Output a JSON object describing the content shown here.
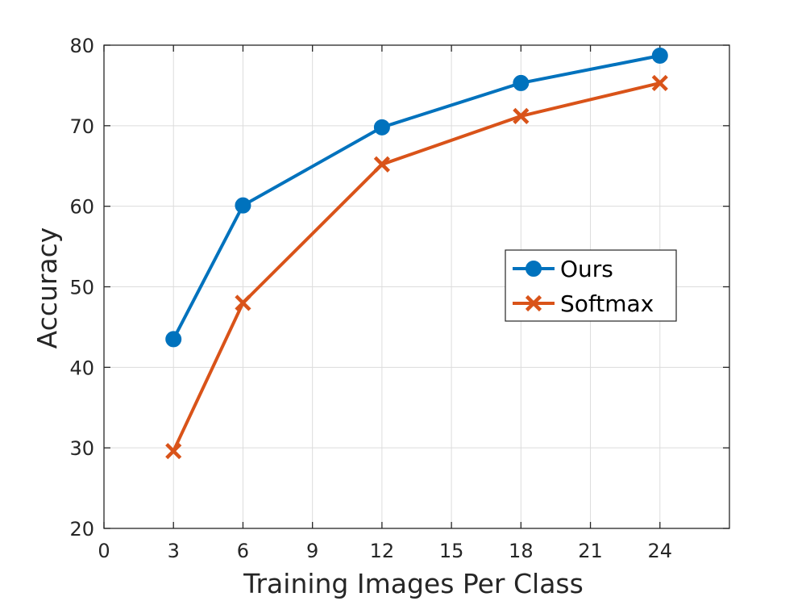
{
  "chart_data": {
    "type": "line",
    "xlabel": "Training Images Per Class",
    "ylabel": "Accuracy",
    "xlim": [
      0,
      27
    ],
    "ylim": [
      20,
      80
    ],
    "xticks": [
      0,
      3,
      6,
      9,
      12,
      15,
      18,
      21,
      24
    ],
    "yticks": [
      20,
      30,
      40,
      50,
      60,
      70,
      80
    ],
    "grid": true,
    "legend_position": "right",
    "series": [
      {
        "name": "Ours",
        "color": "#0072BD",
        "marker": "circle",
        "x": [
          3,
          6,
          12,
          18,
          24
        ],
        "y": [
          43.5,
          60.1,
          69.8,
          75.3,
          78.7
        ]
      },
      {
        "name": "Softmax",
        "color": "#D95319",
        "marker": "x",
        "x": [
          3,
          6,
          12,
          18,
          24
        ],
        "y": [
          29.6,
          48.0,
          65.2,
          71.2,
          75.3
        ]
      }
    ]
  }
}
